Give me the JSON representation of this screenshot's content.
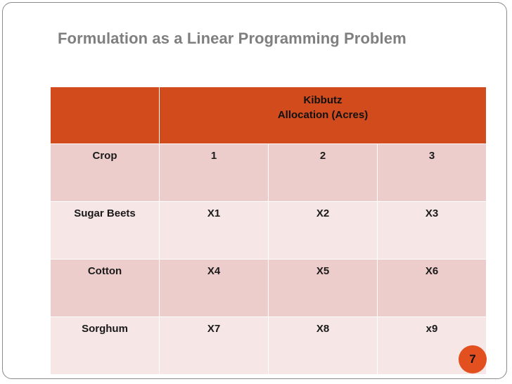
{
  "slide": {
    "title": "Formulation as a Linear Programming Problem",
    "page_number": "7"
  },
  "table": {
    "header": {
      "line1": "Kibbutz",
      "line2": "Allocation (Acres)"
    },
    "columns": [
      "Crop",
      "1",
      "2",
      "3"
    ],
    "rows": [
      [
        "Sugar Beets",
        "X1",
        "X2",
        "X3"
      ],
      [
        "Cotton",
        "X4",
        "X5",
        "X6"
      ],
      [
        "Sorghum",
        "X7",
        "X8",
        "x9"
      ]
    ]
  },
  "colors": {
    "header_fill": "#d14b1c",
    "row_dark": "#edcdcb",
    "row_light": "#f6e6e5",
    "badge": "#e2501f",
    "title_text": "#7f7f7f"
  }
}
